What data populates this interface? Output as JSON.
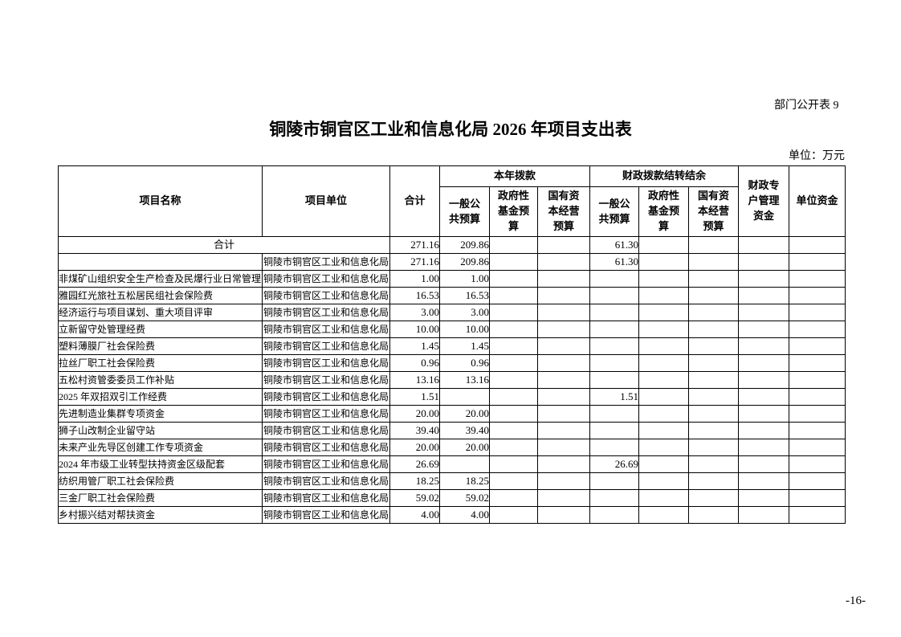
{
  "page": {
    "doc_label": "部门公开表 9",
    "title": "铜陵市铜官区工业和信息化局 2026 年项目支出表",
    "unit_note": "单位：万元",
    "page_number": "-16-"
  },
  "table": {
    "header": {
      "project_name": "项目名称",
      "project_unit": "项目单位",
      "total": "合计",
      "current_year_group": "本年拨款",
      "carryover_group": "财政拨款结转结余",
      "general_budget": "一般公共预算",
      "gov_fund_budget": "政府性基金预算",
      "state_capital_budget": "国有资本经营预算",
      "special_account": "财政专户管理资金",
      "unit_funds": "单位资金"
    },
    "rows": [
      {
        "name": "合计",
        "name_colspan": 2,
        "unit": "",
        "values": [
          "271.16",
          "209.86",
          "",
          "",
          "61.30",
          "",
          "",
          "",
          ""
        ]
      },
      {
        "name": "",
        "unit": "铜陵市铜官区工业和信息化局",
        "values": [
          "271.16",
          "209.86",
          "",
          "",
          "61.30",
          "",
          "",
          "",
          ""
        ]
      },
      {
        "name": "非煤矿山组织安全生产检查及民爆行业日常管理",
        "unit": "铜陵市铜官区工业和信息化局",
        "values": [
          "1.00",
          "1.00",
          "",
          "",
          "",
          "",
          "",
          "",
          ""
        ]
      },
      {
        "name": "雅园红光旅社五松居民组社会保险费",
        "unit": "铜陵市铜官区工业和信息化局",
        "values": [
          "16.53",
          "16.53",
          "",
          "",
          "",
          "",
          "",
          "",
          ""
        ]
      },
      {
        "name": "经济运行与项目谋划、重大项目评审",
        "unit": "铜陵市铜官区工业和信息化局",
        "values": [
          "3.00",
          "3.00",
          "",
          "",
          "",
          "",
          "",
          "",
          ""
        ]
      },
      {
        "name": "立新留守处管理经费",
        "unit": "铜陵市铜官区工业和信息化局",
        "values": [
          "10.00",
          "10.00",
          "",
          "",
          "",
          "",
          "",
          "",
          ""
        ]
      },
      {
        "name": "塑料薄膜厂社会保险费",
        "unit": "铜陵市铜官区工业和信息化局",
        "values": [
          "1.45",
          "1.45",
          "",
          "",
          "",
          "",
          "",
          "",
          ""
        ]
      },
      {
        "name": "拉丝厂职工社会保险费",
        "unit": "铜陵市铜官区工业和信息化局",
        "values": [
          "0.96",
          "0.96",
          "",
          "",
          "",
          "",
          "",
          "",
          ""
        ]
      },
      {
        "name": "五松村资管委委员工作补贴",
        "unit": "铜陵市铜官区工业和信息化局",
        "values": [
          "13.16",
          "13.16",
          "",
          "",
          "",
          "",
          "",
          "",
          ""
        ]
      },
      {
        "name": "2025 年双招双引工作经费",
        "unit": "铜陵市铜官区工业和信息化局",
        "values": [
          "1.51",
          "",
          "",
          "",
          "1.51",
          "",
          "",
          "",
          ""
        ]
      },
      {
        "name": "先进制造业集群专项资金",
        "unit": "铜陵市铜官区工业和信息化局",
        "values": [
          "20.00",
          "20.00",
          "",
          "",
          "",
          "",
          "",
          "",
          ""
        ]
      },
      {
        "name": "狮子山改制企业留守站",
        "unit": "铜陵市铜官区工业和信息化局",
        "values": [
          "39.40",
          "39.40",
          "",
          "",
          "",
          "",
          "",
          "",
          ""
        ]
      },
      {
        "name": "未来产业先导区创建工作专项资金",
        "unit": "铜陵市铜官区工业和信息化局",
        "values": [
          "20.00",
          "20.00",
          "",
          "",
          "",
          "",
          "",
          "",
          ""
        ]
      },
      {
        "name": "2024 年市级工业转型扶持资金区级配套",
        "unit": "铜陵市铜官区工业和信息化局",
        "values": [
          "26.69",
          "",
          "",
          "",
          "26.69",
          "",
          "",
          "",
          ""
        ]
      },
      {
        "name": "纺织用管厂职工社会保险费",
        "unit": "铜陵市铜官区工业和信息化局",
        "values": [
          "18.25",
          "18.25",
          "",
          "",
          "",
          "",
          "",
          "",
          ""
        ]
      },
      {
        "name": "三金厂职工社会保险费",
        "unit": "铜陵市铜官区工业和信息化局",
        "values": [
          "59.02",
          "59.02",
          "",
          "",
          "",
          "",
          "",
          "",
          ""
        ]
      },
      {
        "name": "乡村振兴结对帮扶资金",
        "unit": "铜陵市铜官区工业和信息化局",
        "values": [
          "4.00",
          "4.00",
          "",
          "",
          "",
          "",
          "",
          "",
          ""
        ]
      }
    ]
  }
}
